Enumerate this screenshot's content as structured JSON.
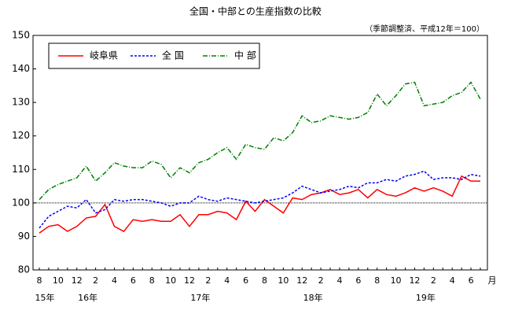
{
  "chart_data": {
    "type": "line",
    "title": "全国・中部との生産指数の比較",
    "subtitle": "（季節調整済、平成12年＝100）",
    "x_unit": "月",
    "categories": [
      "8",
      null,
      "10",
      null,
      "12",
      null,
      "2",
      null,
      "4",
      null,
      "6",
      null,
      "8",
      null,
      "10",
      null,
      "12",
      null,
      "2",
      null,
      "4",
      null,
      "6",
      null,
      "8",
      null,
      "10",
      null,
      "12",
      null,
      "2",
      null,
      "4",
      null,
      "6",
      null,
      "8",
      null,
      "10",
      null,
      "12",
      null,
      "2",
      null,
      "4",
      null,
      "6",
      null
    ],
    "year_labels": [
      "15年",
      "16年",
      "17年",
      "18年",
      "19年"
    ],
    "ylim": [
      80,
      150
    ],
    "yticks": [
      80,
      90,
      100,
      110,
      120,
      130,
      140,
      150
    ],
    "reference_line": 100,
    "legend": "upper left",
    "series": [
      {
        "name": "岐阜県",
        "color": "#ff0000",
        "dash": "solid",
        "values": [
          91,
          93,
          93.5,
          91.5,
          93,
          95.5,
          96,
          99.5,
          93,
          91.5,
          95,
          94.5,
          95,
          94.5,
          94.5,
          96.5,
          93,
          96.5,
          96.5,
          97.5,
          97,
          95,
          100.5,
          97.5,
          101,
          99,
          97,
          101.5,
          101,
          102.5,
          103,
          104,
          102.5,
          103,
          104,
          101.5,
          104,
          102.5,
          102,
          103,
          104.5,
          103.5,
          104.5,
          103.5,
          102,
          108,
          106.5,
          106.5
        ]
      },
      {
        "name": "全 国",
        "color": "#0000ff",
        "dash": "dashed",
        "values": [
          92.5,
          96,
          97.5,
          99,
          98.5,
          101,
          97,
          98,
          101,
          100.5,
          101,
          101,
          100.5,
          100,
          99,
          100,
          100,
          102,
          101,
          100.5,
          101.5,
          101,
          100.5,
          100,
          100.5,
          101,
          101.5,
          103,
          105,
          104,
          103,
          103.5,
          104,
          105,
          104.5,
          106,
          106,
          107,
          106.5,
          108,
          108.5,
          109.5,
          107,
          107.5,
          107.5,
          107,
          108.5,
          108
        ]
      },
      {
        "name": "中 部",
        "color": "#008000",
        "dash": "dashdot",
        "values": [
          101,
          104,
          105.5,
          106.5,
          107.5,
          111,
          106.5,
          109,
          112,
          111,
          110.5,
          110.5,
          112.5,
          111.5,
          107.5,
          110.5,
          109,
          112,
          113,
          115,
          116.5,
          113,
          117.5,
          116.5,
          116,
          119.5,
          118.5,
          121,
          126,
          124,
          124.5,
          126,
          125.5,
          125,
          125.5,
          127,
          132.5,
          129,
          132,
          135.5,
          136,
          129,
          129.5,
          130,
          132,
          133,
          136,
          131
        ]
      }
    ]
  }
}
